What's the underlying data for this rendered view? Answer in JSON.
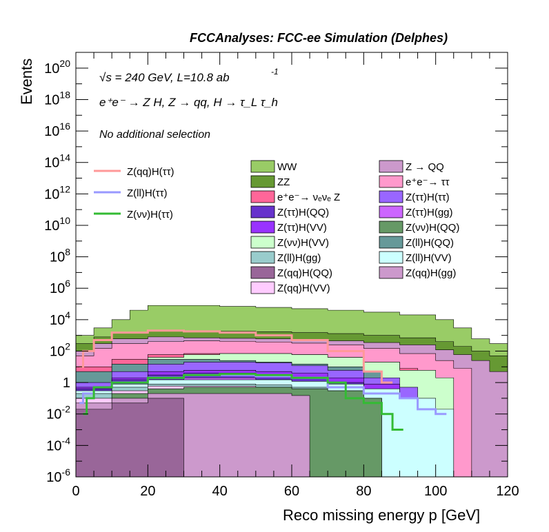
{
  "header": {
    "title": "FCCAnalyses: FCC-ee Simulation (Delphes)"
  },
  "annotations": {
    "energy": "√s = 240 GeV, L=10.8 ab",
    "energy_exp": "-1",
    "process": "e⁺e⁻ → Z H, Z → qq, H → τ_L τ_h",
    "selection": "No additional selection"
  },
  "chart_data": {
    "type": "area",
    "title": "FCCAnalyses: FCC-ee Simulation (Delphes)",
    "xlabel": "Reco missing energy p [GeV]",
    "ylabel": "Events",
    "xlim": [
      0,
      120
    ],
    "ylim": [
      1e-06,
      1e+21
    ],
    "yscale": "log",
    "x_ticks": [
      "0",
      "20",
      "40",
      "60",
      "80",
      "100",
      "120"
    ],
    "y_ticks": [
      {
        "base": "10",
        "exp": "-6",
        "value": 1e-06
      },
      {
        "base": "10",
        "exp": "-4",
        "value": 0.0001
      },
      {
        "base": "10",
        "exp": "-2",
        "value": 0.01
      },
      {
        "base": "1",
        "exp": "",
        "value": 1
      },
      {
        "base": "10",
        "exp": "2",
        "value": 100.0
      },
      {
        "base": "10",
        "exp": "4",
        "value": 10000.0
      },
      {
        "base": "10",
        "exp": "6",
        "value": 1000000.0
      },
      {
        "base": "10",
        "exp": "8",
        "value": 100000000.0
      },
      {
        "base": "10",
        "exp": "10",
        "value": 10000000000.0
      },
      {
        "base": "10",
        "exp": "12",
        "value": 1000000000000.0
      },
      {
        "base": "10",
        "exp": "14",
        "value": 100000000000000.0
      },
      {
        "base": "10",
        "exp": "16",
        "value": 1e+16
      },
      {
        "base": "10",
        "exp": "18",
        "value": 1e+18
      },
      {
        "base": "10",
        "exp": "20",
        "value": 1e+20
      }
    ],
    "stacked_series": [
      {
        "name": "WW",
        "color": "#99cc66",
        "points": [
          [
            0,
            1000
          ],
          [
            5,
            3000
          ],
          [
            10,
            10000
          ],
          [
            15,
            40000
          ],
          [
            20,
            80000
          ],
          [
            30,
            80000
          ],
          [
            40,
            70000
          ],
          [
            50,
            60000
          ],
          [
            60,
            50000
          ],
          [
            70,
            40000
          ],
          [
            80,
            30000
          ],
          [
            90,
            20000
          ],
          [
            100,
            10000
          ],
          [
            105,
            3000
          ],
          [
            110,
            600
          ],
          [
            115,
            300
          ]
        ]
      },
      {
        "name": "ZZ",
        "color": "#669933",
        "points": [
          [
            0,
            300
          ],
          [
            5,
            800
          ],
          [
            10,
            1500
          ],
          [
            20,
            2000
          ],
          [
            30,
            1900
          ],
          [
            40,
            1800
          ],
          [
            50,
            1700
          ],
          [
            60,
            1500
          ],
          [
            70,
            1300
          ],
          [
            80,
            1000
          ],
          [
            90,
            700
          ],
          [
            100,
            400
          ],
          [
            105,
            200
          ],
          [
            110,
            100
          ],
          [
            115,
            50
          ]
        ]
      },
      {
        "name": "Z → QQ",
        "color": "#cc99cc",
        "points": [
          [
            0,
            100
          ],
          [
            5,
            300
          ],
          [
            10,
            600
          ],
          [
            20,
            800
          ],
          [
            30,
            700
          ],
          [
            40,
            650
          ],
          [
            50,
            600
          ],
          [
            60,
            550
          ],
          [
            70,
            450
          ],
          [
            80,
            350
          ],
          [
            90,
            250
          ],
          [
            100,
            120
          ],
          [
            105,
            60
          ],
          [
            110,
            25
          ],
          [
            115,
            5
          ]
        ]
      },
      {
        "name": "e⁺e⁻→ ττ",
        "color": "#ff99cc",
        "points": [
          [
            0,
            50
          ],
          [
            5,
            150
          ],
          [
            10,
            300
          ],
          [
            20,
            400
          ],
          [
            30,
            450
          ],
          [
            40,
            420
          ],
          [
            50,
            380
          ],
          [
            60,
            320
          ],
          [
            70,
            250
          ],
          [
            80,
            150
          ],
          [
            90,
            70
          ],
          [
            100,
            25
          ],
          [
            105,
            8
          ]
        ]
      },
      {
        "name": "e⁺e⁻→ νₑνₑ Z",
        "color": "#ff6699",
        "points": [
          [
            0,
            10
          ],
          [
            10,
            30
          ],
          [
            20,
            60
          ],
          [
            30,
            70
          ],
          [
            40,
            70
          ],
          [
            50,
            70
          ],
          [
            60,
            60
          ],
          [
            70,
            40
          ],
          [
            80,
            20
          ],
          [
            90,
            8
          ]
        ]
      },
      {
        "name": "Z(νν)H(VV)",
        "color": "#ccffcc",
        "points": [
          [
            0,
            2
          ],
          [
            10,
            10
          ],
          [
            20,
            40
          ],
          [
            30,
            60
          ],
          [
            40,
            70
          ],
          [
            50,
            70
          ],
          [
            60,
            60
          ],
          [
            70,
            40
          ],
          [
            80,
            20
          ],
          [
            90,
            6
          ],
          [
            100,
            2
          ]
        ]
      },
      {
        "name": "Z(ll)H(QQ)",
        "color": "#669999",
        "points": [
          [
            0,
            5
          ],
          [
            10,
            15
          ],
          [
            20,
            30
          ],
          [
            30,
            30
          ],
          [
            40,
            25
          ],
          [
            50,
            20
          ],
          [
            60,
            15
          ],
          [
            70,
            10
          ],
          [
            80,
            5
          ]
        ]
      },
      {
        "name": "Z(ττ)H(ττ)",
        "color": "#9966ff",
        "points": [
          [
            0,
            1
          ],
          [
            10,
            5
          ],
          [
            20,
            15
          ],
          [
            30,
            20
          ],
          [
            40,
            20
          ],
          [
            50,
            18
          ],
          [
            60,
            12
          ],
          [
            70,
            6
          ],
          [
            80,
            2
          ],
          [
            90,
            0.5
          ]
        ]
      },
      {
        "name": "Z(ττ)H(VV)",
        "color": "#9933ff",
        "points": [
          [
            0,
            0.5
          ],
          [
            10,
            2
          ],
          [
            20,
            5
          ],
          [
            30,
            6
          ],
          [
            40,
            6
          ],
          [
            50,
            5
          ],
          [
            60,
            4
          ],
          [
            70,
            2
          ],
          [
            80,
            0.8
          ],
          [
            90,
            0.1
          ]
        ]
      },
      {
        "name": "Z(ττ)H(QQ)",
        "color": "#6633cc",
        "points": [
          [
            0,
            0.4
          ],
          [
            10,
            1.5
          ],
          [
            20,
            3
          ],
          [
            30,
            4
          ],
          [
            40,
            4
          ],
          [
            50,
            3
          ],
          [
            60,
            2
          ],
          [
            70,
            1
          ],
          [
            80,
            0.3
          ]
        ]
      },
      {
        "name": "Z(ττ)H(gg)",
        "color": "#cc66ff",
        "points": [
          [
            0,
            0.2
          ],
          [
            10,
            0.8
          ],
          [
            20,
            1.5
          ],
          [
            30,
            2
          ],
          [
            40,
            2
          ],
          [
            50,
            1.5
          ],
          [
            60,
            1
          ],
          [
            70,
            0.5
          ],
          [
            80,
            0.1
          ]
        ]
      },
      {
        "name": "Z(ll)H(VV)",
        "color": "#ccffff",
        "points": [
          [
            0,
            0.3
          ],
          [
            10,
            0.8
          ],
          [
            20,
            1.5
          ],
          [
            30,
            1.5
          ],
          [
            40,
            1.5
          ],
          [
            50,
            1.5
          ],
          [
            60,
            1.2
          ],
          [
            70,
            0.8
          ],
          [
            80,
            0.4
          ],
          [
            90,
            0.1
          ],
          [
            100,
            0.02
          ]
        ]
      },
      {
        "name": "Z(ll)H(gg)",
        "color": "#99cccc",
        "points": [
          [
            0,
            0.2
          ],
          [
            10,
            0.5
          ],
          [
            20,
            0.8
          ],
          [
            30,
            0.8
          ],
          [
            40,
            0.8
          ],
          [
            50,
            0.7
          ],
          [
            60,
            0.5
          ],
          [
            70,
            0.3
          ],
          [
            80,
            0.1
          ]
        ]
      },
      {
        "name": "Z(qq)H(VV)",
        "color": "#ffccff",
        "points": [
          [
            0,
            0.1
          ],
          [
            10,
            0.3
          ],
          [
            20,
            0.6
          ],
          [
            30,
            0.6
          ],
          [
            40,
            0.6
          ],
          [
            50,
            0.5
          ],
          [
            60,
            0.4
          ],
          [
            70,
            0.2
          ]
        ]
      },
      {
        "name": "Z(νν)H(QQ)",
        "color": "#669966",
        "points": [
          [
            0,
            0.05
          ],
          [
            10,
            0.2
          ],
          [
            20,
            0.4
          ],
          [
            30,
            0.5
          ],
          [
            40,
            0.5
          ],
          [
            50,
            0.5
          ],
          [
            60,
            0.4
          ],
          [
            70,
            0.3
          ],
          [
            80,
            0.1
          ]
        ]
      },
      {
        "name": "Z(qq)H(gg)",
        "color": "#cc99cc",
        "points": [
          [
            0,
            0.05
          ],
          [
            10,
            0.1
          ],
          [
            20,
            0.2
          ],
          [
            30,
            0.2
          ],
          [
            40,
            0.2
          ],
          [
            50,
            0.2
          ],
          [
            60,
            0.15
          ]
        ]
      },
      {
        "name": "Z(qq)H(QQ)",
        "color": "#996699",
        "points": [
          [
            0,
            0.02
          ],
          [
            10,
            0.05
          ],
          [
            20,
            0.1
          ],
          [
            25,
            0.1
          ]
        ]
      }
    ],
    "line_series": [
      {
        "name": "Z(qq)H(ττ)",
        "color": "#ff9999",
        "points": [
          [
            1,
            10
          ],
          [
            2,
            100
          ],
          [
            5,
            500
          ],
          [
            10,
            1500
          ],
          [
            20,
            2000
          ],
          [
            30,
            1800
          ],
          [
            40,
            1500
          ],
          [
            50,
            1000
          ],
          [
            60,
            500
          ],
          [
            70,
            100
          ],
          [
            80,
            5
          ],
          [
            85,
            1
          ]
        ]
      },
      {
        "name": "Z(ll)H(ττ)",
        "color": "#9999ff",
        "points": [
          [
            1,
            0.05
          ],
          [
            2,
            0.2
          ],
          [
            5,
            0.5
          ],
          [
            10,
            1
          ],
          [
            20,
            2
          ],
          [
            30,
            3
          ],
          [
            40,
            3
          ],
          [
            50,
            2.5
          ],
          [
            60,
            2
          ],
          [
            70,
            0.5
          ],
          [
            80,
            0.2
          ],
          [
            90,
            0.1
          ],
          [
            95,
            0.02
          ],
          [
            100,
            0.01
          ]
        ]
      },
      {
        "name": "Z(νν)H(ττ)",
        "color": "#33bb33",
        "points": [
          [
            2,
            0.01
          ],
          [
            3,
            0.1
          ],
          [
            5,
            0.5
          ],
          [
            10,
            1
          ],
          [
            20,
            2
          ],
          [
            30,
            3
          ],
          [
            40,
            3.5
          ],
          [
            50,
            3
          ],
          [
            60,
            2
          ],
          [
            70,
            1
          ],
          [
            75,
            0.1
          ],
          [
            80,
            0.05
          ],
          [
            85,
            0.01
          ],
          [
            88,
            0.001
          ]
        ]
      }
    ],
    "legend": {
      "placement": "top",
      "lines": [
        "Z(qq)H(ττ)",
        "Z(ll)H(ττ)",
        "Z(νν)H(ττ)"
      ],
      "col2": [
        "WW",
        "ZZ",
        "e⁺e⁻→ νₑνₑ Z",
        "Z(ττ)H(QQ)",
        "Z(ττ)H(VV)",
        "Z(νν)H(VV)",
        "Z(ll)H(gg)",
        "Z(qq)H(QQ)",
        "Z(qq)H(VV)"
      ],
      "col3": [
        "Z → QQ",
        "e⁺e⁻→ ττ",
        "Z(ττ)H(ττ)",
        "Z(ττ)H(gg)",
        "Z(νν)H(QQ)",
        "Z(ll)H(QQ)",
        "Z(ll)H(VV)",
        "Z(qq)H(gg)"
      ]
    }
  }
}
